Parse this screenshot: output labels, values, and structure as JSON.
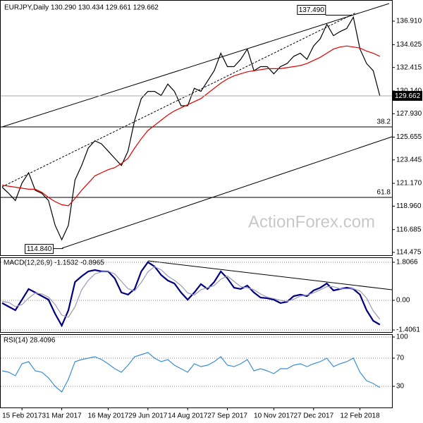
{
  "chart_data": [
    {
      "type": "line",
      "title": "EURJPY,Daily 130.290 130.434 129.661 129.662",
      "watermark": "ActionForex.com",
      "ylim": [
        114.2,
        138.62
      ],
      "yticks": [
        114.475,
        116.685,
        {
          "value": 118.96,
          "label": "118.960"
        },
        {
          "value": 121.17,
          "label": "121.170"
        },
        123.445,
        125.655,
        {
          "value": 127.93,
          "label": "127.930"
        },
        {
          "value": 130.14,
          "label": "130.140"
        },
        132.415,
        134.625,
        {
          "value": 136.91,
          "label": "136.910"
        }
      ],
      "grid": false,
      "series": [
        {
          "color": "#000000",
          "values": [
            120.8,
            120.2,
            119.5,
            121.2,
            122.2,
            120.5,
            120.2,
            119.5,
            117.1,
            115.7,
            117.1,
            121.5,
            122.9,
            124.6,
            125.3,
            125.0,
            124.3,
            123.6,
            122.9,
            124.3,
            127.3,
            129.4,
            130.1,
            130.1,
            129.7,
            130.8,
            130.1,
            128.7,
            128.7,
            130.4,
            130.1,
            131.1,
            132.1,
            133.8,
            132.5,
            132.5,
            133.2,
            134.2,
            132.1,
            132.5,
            132.5,
            131.8,
            132.5,
            132.8,
            133.5,
            133.8,
            133.2,
            134.5,
            135.2,
            136.6,
            135.5,
            135.9,
            136.2,
            137.3,
            134.2,
            132.8,
            132.1,
            129.662
          ]
        },
        {
          "color": "#e00000",
          "values": [
            121.0,
            120.9,
            120.8,
            120.7,
            120.6,
            120.6,
            120.3,
            119.8,
            119.4,
            119.1,
            119.0,
            119.7,
            120.5,
            121.2,
            121.9,
            122.2,
            122.5,
            122.7,
            123.1,
            123.6,
            124.6,
            125.5,
            126.3,
            126.8,
            127.3,
            127.8,
            128.2,
            128.5,
            128.8,
            129.1,
            129.4,
            129.9,
            130.4,
            130.9,
            131.3,
            131.6,
            131.8,
            132.0,
            132.1,
            132.2,
            132.3,
            132.3,
            132.3,
            132.4,
            132.5,
            132.6,
            132.8,
            133.1,
            133.4,
            133.8,
            134.2,
            134.4,
            134.5,
            134.4,
            134.3,
            134.0,
            133.8,
            133.5
          ]
        }
      ],
      "fib_levels": [
        {
          "ratio": 38.2,
          "price": 126.65
        },
        {
          "ratio": 61.8,
          "price": 119.81
        }
      ],
      "high": {
        "value": 137.49,
        "label": "137.490"
      },
      "low": {
        "value": 114.84,
        "label": "114.840"
      },
      "last_value": 129.662
    },
    {
      "type": "line",
      "title": "MACD(12,26,9) -1.1532 -0.8965",
      "ylim": [
        -1.505,
        2.007
      ],
      "yticks": [
        1.8066,
        {
          "value": 0,
          "label": "0.00"
        },
        -1.4061
      ],
      "grid": true,
      "series": [
        {
          "color": "#000080",
          "values": [
            -0.13,
            -0.3,
            -0.47,
            0.03,
            0.54,
            0.37,
            0.2,
            0.03,
            -0.64,
            -1.2,
            -0.47,
            0.87,
            1.14,
            1.37,
            1.44,
            1.37,
            1.37,
            1.04,
            0.37,
            0.27,
            0.54,
            1.37,
            1.81,
            1.61,
            1.2,
            0.94,
            0.8,
            0.37,
            0.03,
            0.37,
            0.77,
            0.54,
            0.87,
            1.37,
            1.04,
            0.6,
            0.54,
            0.7,
            0.37,
            0.13,
            0.1,
            0.03,
            -0.13,
            -0.07,
            0.2,
            0.27,
            0.2,
            0.47,
            0.6,
            0.8,
            0.47,
            0.54,
            0.6,
            0.54,
            0.27,
            -0.47,
            -0.97,
            -1.1532
          ]
        },
        {
          "color": "#9a9ab8",
          "values": [
            -0.05,
            -0.1,
            -0.3,
            -0.2,
            0.1,
            0.35,
            0.3,
            0.15,
            -0.2,
            -0.7,
            -0.8,
            -0.3,
            0.5,
            0.95,
            1.25,
            1.35,
            1.38,
            1.25,
            0.9,
            0.55,
            0.45,
            0.85,
            1.35,
            1.6,
            1.45,
            1.15,
            0.95,
            0.7,
            0.35,
            0.25,
            0.5,
            0.6,
            0.7,
            1.0,
            1.15,
            0.9,
            0.65,
            0.6,
            0.5,
            0.3,
            0.15,
            0.08,
            0.0,
            -0.05,
            0.05,
            0.2,
            0.25,
            0.35,
            0.5,
            0.65,
            0.65,
            0.55,
            0.55,
            0.55,
            0.45,
            0.1,
            -0.5,
            -0.8965
          ]
        }
      ]
    },
    {
      "type": "line",
      "title": "RSI(14) 28.4096",
      "ylim": [
        0,
        102
      ],
      "yticks": [
        30,
        70,
        100
      ],
      "grid": true,
      "categories": [
        null,
        null,
        null,
        "15 Feb 2017",
        null,
        null,
        null,
        null,
        null,
        "31 Mar 2017",
        null,
        null,
        null,
        null,
        null,
        null,
        "16 May 2017",
        null,
        null,
        null,
        null,
        null,
        "29 Jun 2017",
        null,
        null,
        null,
        null,
        null,
        "14 Aug 2017",
        null,
        null,
        null,
        null,
        null,
        "27 Sep 2017",
        null,
        null,
        null,
        null,
        null,
        null,
        "10 Nov 2017",
        null,
        null,
        null,
        null,
        null,
        "27 Dec 2017",
        null,
        null,
        null,
        null,
        null,
        null,
        "12 Feb 2018",
        null,
        null,
        null
      ],
      "series": [
        {
          "color": "#3b8ed6",
          "values": [
            52,
            50,
            45,
            62,
            65,
            52,
            50,
            42,
            30,
            22,
            40,
            65,
            68,
            70,
            72,
            68,
            62,
            55,
            50,
            60,
            72,
            75,
            78,
            70,
            65,
            68,
            60,
            55,
            50,
            62,
            58,
            60,
            65,
            72,
            60,
            58,
            62,
            68,
            52,
            55,
            52,
            48,
            55,
            55,
            60,
            62,
            58,
            62,
            65,
            70,
            58,
            62,
            65,
            70,
            50,
            38,
            34,
            28.4096
          ]
        }
      ]
    }
  ]
}
